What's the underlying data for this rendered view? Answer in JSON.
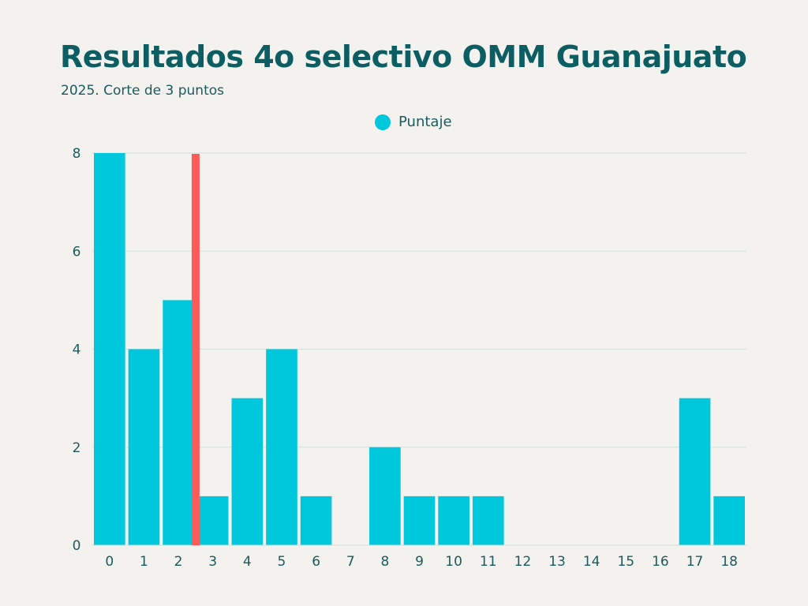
{
  "title": "Resultados 4o selectivo OMM Guanajuato",
  "subtitle": "2025. Corte de 3 puntos",
  "colors": {
    "background": "#f3f2ee",
    "bar": "#00c8dc",
    "cutoff": "#ff5a5a",
    "grid": "#d6dcd8",
    "text": "#0c5e62"
  },
  "chart_data": {
    "type": "bar",
    "categories": [
      "0",
      "1",
      "2",
      "3",
      "4",
      "5",
      "6",
      "7",
      "8",
      "9",
      "10",
      "11",
      "12",
      "13",
      "14",
      "15",
      "16",
      "17",
      "18"
    ],
    "series": [
      {
        "name": "Puntaje",
        "values": [
          8,
          4,
          5,
          1,
          3,
          4,
          1,
          0,
          2,
          1,
          1,
          1,
          0,
          0,
          0,
          0,
          0,
          3,
          1
        ]
      }
    ],
    "yticks": [
      0,
      2,
      4,
      6,
      8
    ],
    "ylim": [
      0,
      8
    ],
    "grid": true,
    "legend_position": "top-center",
    "cutoff_line": {
      "x_between": [
        2,
        3
      ]
    }
  }
}
